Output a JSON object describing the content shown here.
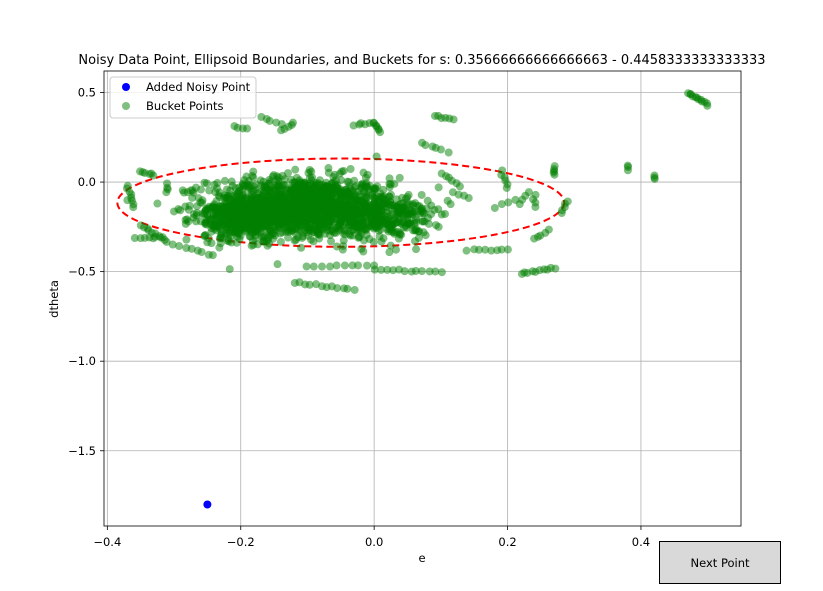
{
  "chart_data": {
    "type": "scatter",
    "title": "Noisy Data Point, Ellipsoid Boundaries, and Buckets for s: 0.35666666666666663 - 0.4458333333333333",
    "xlabel": "e",
    "ylabel": "dtheta",
    "xlim": [
      -0.405,
      0.55
    ],
    "ylim": [
      -1.92,
      0.62
    ],
    "xticks": [
      -0.4,
      -0.2,
      0.0,
      0.2,
      0.4
    ],
    "xtick_labels": [
      "−0.4",
      "−0.2",
      "0.0",
      "0.2",
      "0.4"
    ],
    "yticks": [
      0.5,
      0.0,
      -0.5,
      -1.0,
      -1.5
    ],
    "ytick_labels": [
      "0.5",
      "0.0",
      "−0.5",
      "−1.0",
      "−1.5"
    ],
    "grid": true,
    "legend_placement": "upper-left",
    "ellipse": {
      "center": [
        -0.05,
        -0.115
      ],
      "semi_axis_x": 0.335,
      "semi_axis_y": 0.345,
      "color": "#ff0000",
      "style": "dashed"
    },
    "series": [
      {
        "name": "Added Noisy Point",
        "color": "#0000ff",
        "points": [
          [
            -0.25,
            -1.8
          ]
        ]
      },
      {
        "name": "Bucket Points",
        "color": "#008000",
        "alpha": 0.5,
        "clusters": [
          {
            "center": [
              -0.11,
              -0.14
            ],
            "spread": [
              0.125,
              0.15
            ],
            "count": 1500
          },
          {
            "center": [
              -0.2,
              -0.22
            ],
            "spread": [
              0.05,
              0.1
            ],
            "count": 250
          },
          {
            "center": [
              0.02,
              -0.2
            ],
            "spread": [
              0.06,
              0.12
            ],
            "count": 250
          }
        ],
        "segments": [
          {
            "from": [
              -0.37,
              -0.02
            ],
            "to": [
              -0.36,
              -0.14
            ],
            "count": 8
          },
          {
            "from": [
              -0.35,
              0.06
            ],
            "to": [
              -0.33,
              0.04
            ],
            "count": 6
          },
          {
            "from": [
              -0.35,
              -0.24
            ],
            "to": [
              -0.31,
              -0.33
            ],
            "count": 10
          },
          {
            "from": [
              -0.36,
              -0.31
            ],
            "to": [
              -0.32,
              -0.31
            ],
            "count": 6
          },
          {
            "from": [
              -0.31,
              -0.01
            ],
            "to": [
              -0.31,
              -0.06
            ],
            "count": 4
          },
          {
            "from": [
              -0.3,
              -0.35
            ],
            "to": [
              -0.24,
              -0.41
            ],
            "count": 8
          },
          {
            "from": [
              -0.21,
              0.31
            ],
            "to": [
              -0.19,
              0.3
            ],
            "count": 4
          },
          {
            "from": [
              -0.17,
              0.36
            ],
            "to": [
              -0.14,
              0.32
            ],
            "count": 5
          },
          {
            "from": [
              -0.14,
              0.29
            ],
            "to": [
              -0.12,
              0.33
            ],
            "count": 5
          },
          {
            "from": [
              -0.03,
              0.32
            ],
            "to": [
              0.0,
              0.33
            ],
            "count": 6
          },
          {
            "from": [
              0.0,
              0.33
            ],
            "to": [
              0.01,
              0.28
            ],
            "count": 6
          },
          {
            "from": [
              0.09,
              0.37
            ],
            "to": [
              0.12,
              0.35
            ],
            "count": 6
          },
          {
            "from": [
              0.07,
              0.22
            ],
            "to": [
              0.11,
              0.17
            ],
            "count": 6
          },
          {
            "from": [
              0.1,
              0.05
            ],
            "to": [
              0.13,
              -0.02
            ],
            "count": 6
          },
          {
            "from": [
              0.12,
              -0.06
            ],
            "to": [
              0.14,
              -0.09
            ],
            "count": 4
          },
          {
            "from": [
              0.19,
              0.06
            ],
            "to": [
              0.2,
              -0.03
            ],
            "count": 6
          },
          {
            "from": [
              0.18,
              -0.14
            ],
            "to": [
              0.21,
              -0.1
            ],
            "count": 4
          },
          {
            "from": [
              0.22,
              -0.12
            ],
            "to": [
              0.23,
              -0.06
            ],
            "count": 4
          },
          {
            "from": [
              0.24,
              -0.07
            ],
            "to": [
              0.24,
              -0.14
            ],
            "count": 4
          },
          {
            "from": [
              0.27,
              0.09
            ],
            "to": [
              0.27,
              0.04
            ],
            "count": 5
          },
          {
            "from": [
              0.28,
              -0.17
            ],
            "to": [
              0.29,
              -0.11
            ],
            "count": 5
          },
          {
            "from": [
              0.24,
              -0.32
            ],
            "to": [
              0.26,
              -0.27
            ],
            "count": 5
          },
          {
            "from": [
              0.14,
              -0.38
            ],
            "to": [
              0.2,
              -0.38
            ],
            "count": 8
          },
          {
            "from": [
              0.22,
              -0.51
            ],
            "to": [
              0.27,
              -0.48
            ],
            "count": 10
          },
          {
            "from": [
              -0.12,
              -0.56
            ],
            "to": [
              -0.03,
              -0.6
            ],
            "count": 12
          },
          {
            "from": [
              0.0,
              -0.49
            ],
            "to": [
              0.1,
              -0.5
            ],
            "count": 12
          },
          {
            "from": [
              -0.1,
              -0.47
            ],
            "to": [
              0.0,
              -0.47
            ],
            "count": 10
          },
          {
            "from": [
              0.38,
              0.09
            ],
            "to": [
              0.38,
              0.07
            ],
            "count": 3
          },
          {
            "from": [
              0.42,
              0.04
            ],
            "to": [
              0.42,
              0.02
            ],
            "count": 3
          },
          {
            "from": [
              0.47,
              0.5
            ],
            "to": [
              0.5,
              0.43
            ],
            "count": 12
          }
        ]
      }
    ]
  },
  "next_button": {
    "label": "Next Point"
  }
}
